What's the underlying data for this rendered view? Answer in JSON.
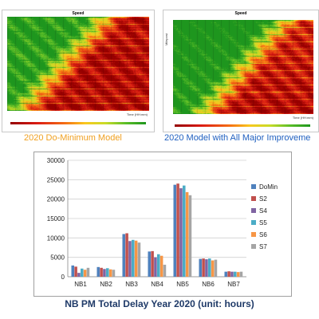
{
  "heatmaps": [
    {
      "title": "Speed",
      "xlabel": "Time (HH:mm)",
      "ylabel": "",
      "caption": "2020 Do-Minimum Model",
      "improved": false
    },
    {
      "title": "Speed",
      "xlabel": "Time (HH:mm)",
      "ylabel": "Milepost",
      "caption": "2020 Model with All Major Improveme",
      "improved": true
    }
  ],
  "chart_data": {
    "type": "bar",
    "title": "NB PM Total Delay Year 2020 (unit: hours)",
    "categories": [
      "NB1",
      "NB2",
      "NB3",
      "NB4",
      "NB5",
      "NB6",
      "NB7"
    ],
    "ylim": [
      0,
      30000
    ],
    "yticks": [
      "0",
      "5000",
      "10000",
      "15000",
      "20000",
      "25000",
      "30000"
    ],
    "grid": true,
    "legend_position": "right",
    "series": [
      {
        "name": "DoMin",
        "color": "#4f81bd",
        "values": [
          2900,
          2500,
          11000,
          6500,
          23700,
          4600,
          1300
        ]
      },
      {
        "name": "S2",
        "color": "#c0504d",
        "values": [
          2600,
          2300,
          11200,
          6600,
          24000,
          4700,
          1400
        ]
      },
      {
        "name": "S4",
        "color": "#8064a2",
        "values": [
          1000,
          2000,
          9200,
          5000,
          22800,
          4500,
          1300
        ]
      },
      {
        "name": "S5",
        "color": "#4bacc6",
        "values": [
          2100,
          2200,
          9500,
          5800,
          23500,
          4700,
          1300
        ]
      },
      {
        "name": "S6",
        "color": "#f79646",
        "values": [
          1800,
          1900,
          9300,
          5400,
          21800,
          4200,
          1200
        ]
      },
      {
        "name": "S7",
        "color": "#a5a5a5",
        "values": [
          2300,
          1800,
          8800,
          3100,
          21000,
          4400,
          1300
        ]
      }
    ]
  }
}
